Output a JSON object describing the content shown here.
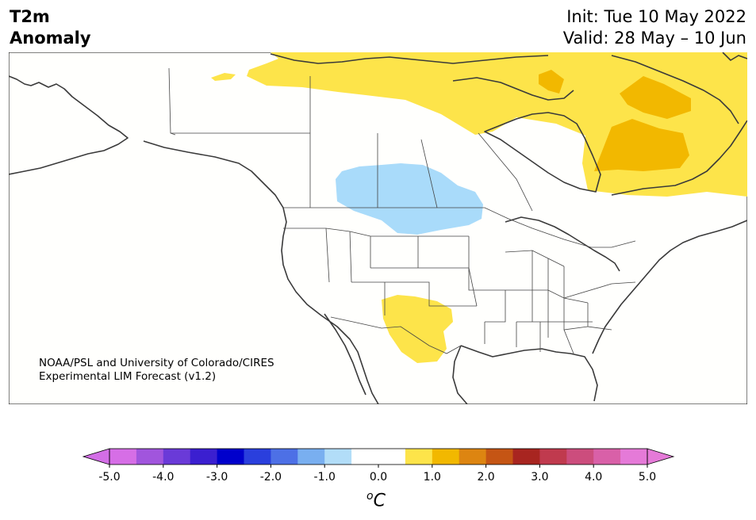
{
  "title": {
    "left_line1": "T2m",
    "left_line2": "Anomaly",
    "init": "Init: Tue 10 May 2022",
    "valid": "Valid: 28 May – 10 Jun"
  },
  "credit": {
    "line1": "NOAA/PSL and University of Colorado/CIRES",
    "line2": "Experimental LIM Forecast (v1.2)"
  },
  "colorbar": {
    "unit": "C",
    "unit_superscript": "o",
    "colors": [
      "#d66ee6",
      "#a155dd",
      "#6a3ad8",
      "#3b1fd0",
      "#0000cc",
      "#2a3fdd",
      "#4d70e6",
      "#79aff0",
      "#b2ddf8",
      "#ffffff",
      "#ffffff",
      "#fde44a",
      "#f2b800",
      "#dd8511",
      "#c55514",
      "#a82520",
      "#c03a4e",
      "#cc4d7d",
      "#d960a8",
      "#e57ad8"
    ],
    "ticks": [
      "-5.0",
      "-4.0",
      "-3.0",
      "-2.0",
      "-1.0",
      "0.0",
      "1.0",
      "2.0",
      "3.0",
      "4.0",
      "5.0"
    ],
    "extend_min_color": "#d36ee6",
    "extend_max_color": "#e57ad8"
  },
  "anomaly_legend": {
    "cold_light": "#a9dbfa",
    "warm_light": "#fde44a",
    "warm_mid": "#f2b800"
  }
}
